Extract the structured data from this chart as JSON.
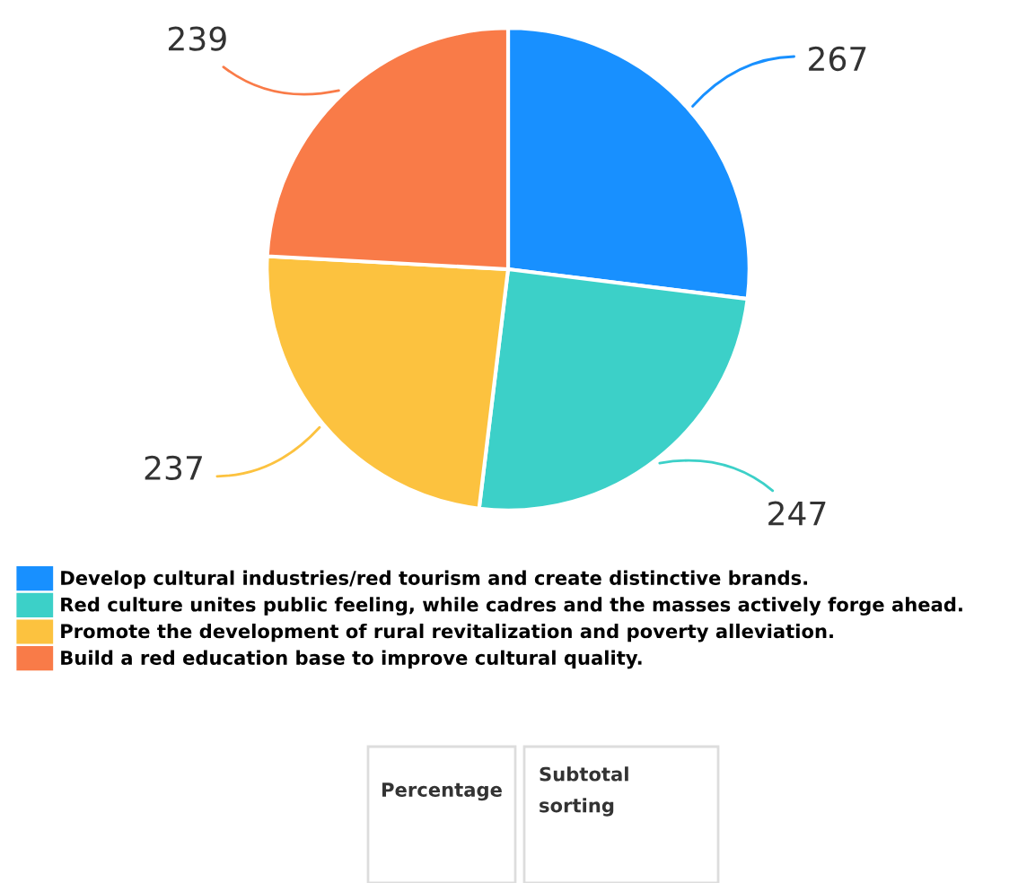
{
  "chart_data": {
    "type": "pie",
    "categories": [
      "Develop cultural industries/red tourism and create distinctive brands.",
      "Red culture unites public feeling, while cadres and the masses actively forge ahead.",
      "Promote the development of rural revitalization and poverty alleviation.",
      "Build a red education base to improve cultural quality."
    ],
    "values": [
      267,
      247,
      237,
      239
    ],
    "colors": [
      "#1890ff",
      "#3cd0c8",
      "#fcc23f",
      "#f97b48"
    ],
    "data_labels": true,
    "legend": "bottom",
    "annotations": [
      "Percentage",
      "Subtotal sorting"
    ]
  }
}
